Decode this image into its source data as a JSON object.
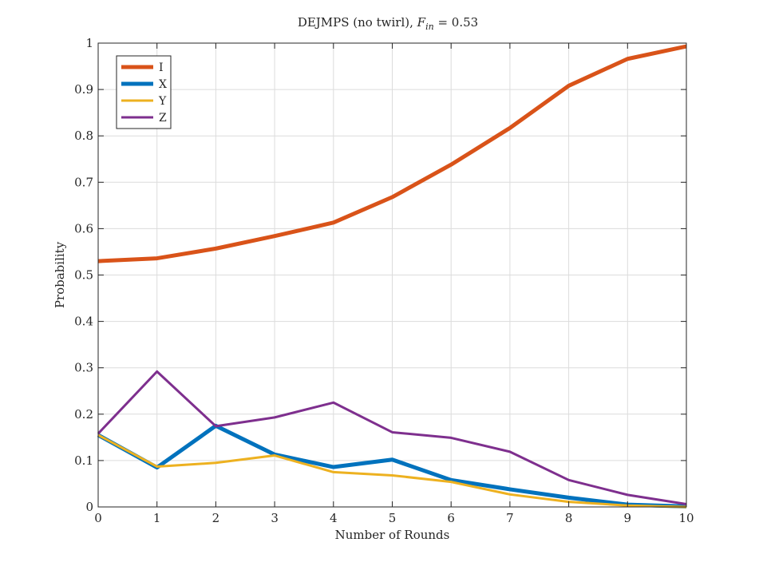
{
  "chart_data": {
    "type": "line",
    "title": "DEJMPS (no twirl), F_in = 0.53",
    "title_parts": {
      "main": "DEJMPS (no twirl), ",
      "symbol": "F",
      "subscript": "in",
      "suffix": " = 0.53"
    },
    "xlabel": "Number of Rounds",
    "ylabel": "Probability",
    "xlim": [
      0,
      10
    ],
    "ylim": [
      0,
      1
    ],
    "xticks": [
      "0",
      "1",
      "2",
      "3",
      "4",
      "5",
      "6",
      "7",
      "8",
      "9",
      "10"
    ],
    "yticks": [
      "0",
      "0.1",
      "0.2",
      "0.3",
      "0.4",
      "0.5",
      "0.6",
      "0.7",
      "0.8",
      "0.9",
      "1"
    ],
    "grid": true,
    "legend_position": "top-left",
    "x": [
      0,
      1,
      2,
      3,
      4,
      5,
      6,
      7,
      8,
      9,
      10
    ],
    "series": [
      {
        "name": "I",
        "color": "#d95319",
        "values": [
          0.53,
          0.536,
          0.557,
          0.584,
          0.613,
          0.668,
          0.738,
          0.817,
          0.908,
          0.966,
          0.993
        ]
      },
      {
        "name": "X",
        "color": "#0072bd",
        "values": [
          0.155,
          0.085,
          0.175,
          0.113,
          0.086,
          0.102,
          0.058,
          0.038,
          0.02,
          0.005,
          0.001
        ]
      },
      {
        "name": "Y",
        "color": "#edb120",
        "values": [
          0.155,
          0.087,
          0.095,
          0.111,
          0.075,
          0.068,
          0.054,
          0.027,
          0.011,
          0.003,
          0.0
        ]
      },
      {
        "name": "Z",
        "color": "#7e2f8e",
        "values": [
          0.158,
          0.292,
          0.174,
          0.193,
          0.225,
          0.161,
          0.149,
          0.119,
          0.058,
          0.026,
          0.006
        ]
      }
    ]
  }
}
